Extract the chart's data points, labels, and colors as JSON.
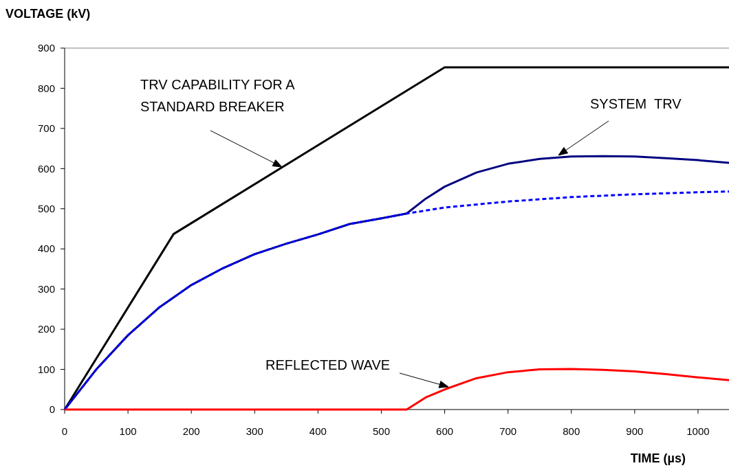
{
  "chart_data": {
    "type": "line",
    "xlabel": "TIME (µs)",
    "ylabel": "VOLTAGE (kV)",
    "xlim": [
      0,
      1050
    ],
    "ylim": [
      0,
      900
    ],
    "xticks": [
      0,
      100,
      200,
      300,
      400,
      500,
      600,
      700,
      800,
      900,
      1000
    ],
    "yticks": [
      0,
      100,
      200,
      300,
      400,
      500,
      600,
      700,
      800,
      900
    ],
    "grid": false,
    "marker": "none",
    "series": [
      {
        "color": "#000000",
        "x": [
          0,
          172,
          600,
          1050
        ],
        "values": [
          0,
          437,
          852,
          852
        ]
      },
      {
        "color": "#000080",
        "x": [
          0,
          50,
          100,
          150,
          200,
          250,
          300,
          350,
          400,
          450,
          500,
          540,
          570,
          600,
          650,
          700,
          750,
          800,
          850,
          900,
          950,
          1000,
          1050
        ],
        "values": [
          0,
          100,
          185,
          255,
          310,
          352,
          387,
          413,
          436,
          462,
          476,
          488,
          525,
          555,
          590,
          612,
          624,
          630,
          631,
          630,
          626,
          621,
          614
        ]
      },
      {
        "color": "#0000ff",
        "line_style": "dashed",
        "x": [
          0,
          50,
          100,
          150,
          200,
          250,
          300,
          350,
          400,
          450,
          500,
          540,
          600,
          700,
          800,
          900,
          1000,
          1050
        ],
        "values": [
          0,
          100,
          185,
          255,
          310,
          352,
          387,
          413,
          436,
          462,
          476,
          488,
          503,
          518,
          529,
          536,
          541,
          543
        ]
      },
      {
        "color": "#ff0000",
        "x": [
          0,
          540,
          570,
          600,
          650,
          700,
          750,
          800,
          850,
          900,
          950,
          1000,
          1050
        ],
        "values": [
          0,
          0,
          30,
          50,
          78,
          93,
          100,
          101,
          99,
          95,
          88,
          80,
          73
        ]
      }
    ],
    "annotations": [
      "TRV CAPABILITY FOR A\nSTANDARD BREAKER",
      "SYSTEM  TRV",
      "REFLECTED WAVE"
    ]
  }
}
